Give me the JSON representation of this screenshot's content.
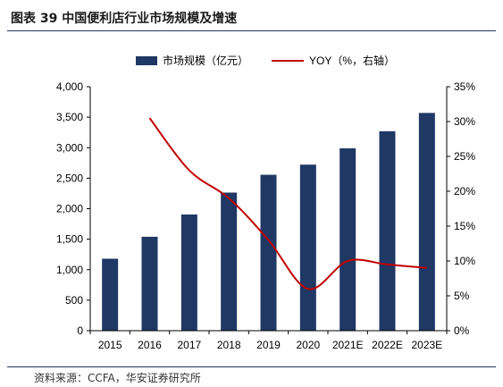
{
  "figure": {
    "title": "图表 39 中国便利店行业市场规模及增速",
    "source": "资料来源：CCFA，华安证券研究所"
  },
  "colors": {
    "bar": "#1f3864",
    "line": "#c00000",
    "rule": "#1f3864"
  },
  "chart_data": {
    "type": "bar",
    "categories": [
      "2015",
      "2016",
      "2017",
      "2018",
      "2019",
      "2020",
      "2021E",
      "2022E",
      "2023E"
    ],
    "series": [
      {
        "name": "市场规模（亿元）",
        "type": "bar",
        "axis": "left",
        "values": [
          1180,
          1540,
          1905,
          2264,
          2556,
          2722,
          2990,
          3270,
          3570
        ]
      },
      {
        "name": "YOY（%，右轴）",
        "type": "line",
        "axis": "right",
        "values": [
          null,
          30.5,
          23.0,
          19.0,
          13.0,
          6.0,
          10.0,
          9.5,
          9.0
        ]
      }
    ],
    "left_axis": {
      "min": 0,
      "max": 4000,
      "ticks": [
        "0",
        "500",
        "1,000",
        "1,500",
        "2,000",
        "2,500",
        "3,000",
        "3,500",
        "4,000"
      ]
    },
    "right_axis": {
      "min": 0,
      "max": 35,
      "ticks": [
        "0%",
        "5%",
        "10%",
        "15%",
        "20%",
        "25%",
        "30%",
        "35%"
      ]
    },
    "legend_position": "top-center",
    "grid": false
  }
}
